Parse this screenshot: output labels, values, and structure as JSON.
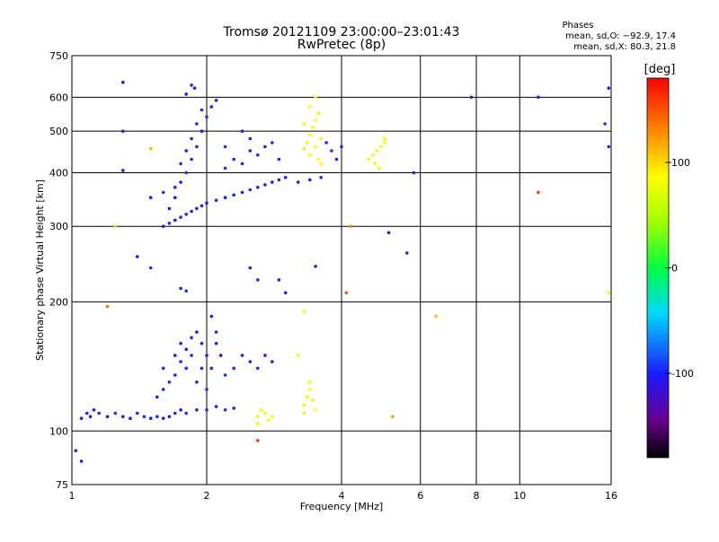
{
  "chart_data": {
    "type": "scatter",
    "title": "Tromsø 20121109 23:00:00–23:01:43",
    "subtitle": "RwPretec (8p)",
    "xlabel": "Frequency [MHz]",
    "ylabel": "Stationary phase Virtual Height [km]",
    "x_scale": "log",
    "y_scale": "log",
    "xlim": [
      1,
      16
    ],
    "ylim": [
      75,
      750
    ],
    "x_ticks": [
      1,
      2,
      4,
      6,
      8,
      10,
      16
    ],
    "y_ticks": [
      75,
      100,
      200,
      300,
      400,
      500,
      600,
      750
    ],
    "grid": true,
    "stats_title": "Phases",
    "stats_line1": "mean, sd,O: −92.9, 17.4",
    "stats_line2": "mean, sd,X:  80.3, 21.8",
    "colorbar": {
      "label": "[deg]",
      "range": [
        -180,
        180
      ],
      "ticks": [
        -100,
        0,
        100
      ],
      "colormap": "rainbow"
    },
    "series": [
      {
        "values": [
          [
            1.05,
            107,
            -100
          ],
          [
            1.08,
            110,
            -95
          ],
          [
            1.1,
            108,
            -105
          ],
          [
            1.12,
            112,
            -100
          ],
          [
            1.15,
            110,
            -98
          ],
          [
            1.2,
            108,
            -100
          ],
          [
            1.25,
            110,
            -95
          ],
          [
            1.3,
            108,
            -100
          ],
          [
            1.35,
            107,
            -100
          ],
          [
            1.4,
            110,
            -98
          ],
          [
            1.45,
            108,
            -95
          ],
          [
            1.5,
            107,
            -100
          ],
          [
            1.55,
            108,
            -100
          ],
          [
            1.6,
            107,
            -105
          ],
          [
            1.65,
            108,
            -100
          ],
          [
            1.7,
            110,
            -98
          ],
          [
            1.75,
            112,
            -100
          ],
          [
            1.8,
            110,
            -95
          ],
          [
            1.9,
            112,
            -100
          ],
          [
            2.0,
            112,
            -98
          ],
          [
            2.1,
            114,
            -100
          ],
          [
            2.2,
            112,
            -95
          ],
          [
            2.3,
            113,
            -100
          ],
          [
            1.6,
            125,
            -98
          ],
          [
            1.7,
            135,
            -100
          ],
          [
            1.75,
            145,
            -95
          ],
          [
            1.8,
            155,
            -100
          ],
          [
            1.85,
            165,
            -98
          ],
          [
            1.9,
            170,
            -100
          ],
          [
            1.65,
            130,
            -95
          ],
          [
            1.7,
            150,
            -100
          ],
          [
            1.8,
            140,
            -98
          ],
          [
            1.9,
            130,
            -100
          ],
          [
            2.0,
            125,
            -95
          ],
          [
            2.05,
            140,
            -100
          ],
          [
            2.1,
            160,
            -98
          ],
          [
            2.15,
            150,
            -100
          ],
          [
            2.2,
            135,
            -95
          ],
          [
            2.3,
            140,
            -100
          ],
          [
            2.4,
            150,
            -98
          ],
          [
            2.5,
            145,
            -100
          ],
          [
            2.6,
            140,
            -95
          ],
          [
            2.7,
            150,
            -100
          ],
          [
            2.8,
            145,
            -98
          ],
          [
            2.05,
            185,
            -100
          ],
          [
            1.55,
            120,
            -100
          ],
          [
            1.6,
            140,
            -98
          ],
          [
            1.75,
            160,
            -100
          ],
          [
            1.85,
            150,
            -95
          ],
          [
            1.95,
            140,
            -100
          ],
          [
            1.95,
            160,
            -98
          ],
          [
            2.0,
            150,
            -100
          ],
          [
            2.1,
            170,
            -95
          ],
          [
            1.6,
            300,
            -100
          ],
          [
            1.65,
            305,
            -95
          ],
          [
            1.7,
            310,
            -100
          ],
          [
            1.75,
            315,
            -98
          ],
          [
            1.8,
            320,
            -100
          ],
          [
            1.85,
            325,
            -95
          ],
          [
            1.9,
            330,
            -100
          ],
          [
            1.95,
            335,
            -98
          ],
          [
            2.0,
            340,
            -100
          ],
          [
            2.1,
            345,
            -95
          ],
          [
            2.2,
            350,
            -100
          ],
          [
            2.3,
            355,
            -98
          ],
          [
            2.4,
            360,
            -100
          ],
          [
            2.5,
            365,
            -95
          ],
          [
            2.6,
            370,
            -100
          ],
          [
            2.7,
            375,
            -98
          ],
          [
            2.8,
            380,
            -100
          ],
          [
            2.9,
            385,
            -95
          ],
          [
            3.0,
            390,
            -100
          ],
          [
            3.2,
            380,
            -98
          ],
          [
            3.4,
            385,
            -100
          ],
          [
            3.6,
            390,
            -95
          ],
          [
            1.65,
            330,
            -100
          ],
          [
            1.7,
            350,
            -98
          ],
          [
            1.75,
            380,
            -100
          ],
          [
            1.8,
            400,
            -95
          ],
          [
            1.85,
            430,
            -100
          ],
          [
            1.9,
            460,
            -98
          ],
          [
            1.95,
            500,
            -100
          ],
          [
            2.0,
            540,
            -95
          ],
          [
            2.05,
            570,
            -100
          ],
          [
            2.1,
            590,
            -98
          ],
          [
            1.7,
            370,
            -100
          ],
          [
            1.75,
            420,
            -95
          ],
          [
            1.8,
            450,
            -100
          ],
          [
            1.85,
            480,
            -98
          ],
          [
            1.9,
            520,
            -100
          ],
          [
            1.95,
            560,
            -95
          ],
          [
            1.8,
            610,
            -100
          ],
          [
            1.85,
            640,
            -98
          ],
          [
            1.88,
            630,
            -100
          ],
          [
            2.2,
            410,
            -95
          ],
          [
            2.3,
            430,
            -100
          ],
          [
            2.4,
            420,
            -98
          ],
          [
            2.5,
            450,
            -100
          ],
          [
            2.6,
            440,
            -95
          ],
          [
            2.7,
            460,
            -100
          ],
          [
            2.8,
            470,
            -98
          ],
          [
            2.9,
            430,
            -100
          ],
          [
            2.2,
            460,
            -95
          ],
          [
            2.4,
            500,
            -100
          ],
          [
            2.5,
            480,
            -98
          ],
          [
            3.7,
            470,
            -100
          ],
          [
            3.8,
            450,
            -95
          ],
          [
            3.9,
            430,
            -100
          ],
          [
            4.0,
            460,
            -98
          ],
          [
            1.75,
            215,
            -100
          ],
          [
            1.8,
            212,
            -95
          ],
          [
            3.0,
            210,
            -100
          ],
          [
            2.6,
            225,
            -98
          ],
          [
            1.5,
            350,
            -100
          ],
          [
            1.6,
            360,
            -95
          ],
          [
            3.3,
            455,
            70
          ],
          [
            3.35,
            470,
            75
          ],
          [
            3.4,
            490,
            80
          ],
          [
            3.45,
            510,
            78
          ],
          [
            3.5,
            530,
            82
          ],
          [
            3.55,
            550,
            76
          ],
          [
            3.4,
            440,
            85
          ],
          [
            3.5,
            460,
            80
          ],
          [
            3.6,
            480,
            78
          ],
          [
            3.3,
            520,
            75
          ],
          [
            3.4,
            570,
            82
          ],
          [
            3.5,
            600,
            80
          ],
          [
            3.55,
            430,
            85
          ],
          [
            3.6,
            420,
            78
          ],
          [
            4.6,
            430,
            82
          ],
          [
            4.7,
            440,
            80
          ],
          [
            4.8,
            450,
            78
          ],
          [
            4.9,
            460,
            85
          ],
          [
            5.0,
            470,
            80
          ],
          [
            4.75,
            420,
            75
          ],
          [
            4.85,
            410,
            82
          ],
          [
            5.0,
            480,
            78
          ],
          [
            3.3,
            115,
            75
          ],
          [
            3.35,
            120,
            80
          ],
          [
            3.4,
            125,
            82
          ],
          [
            3.45,
            118,
            78
          ],
          [
            3.5,
            112,
            85
          ],
          [
            3.4,
            130,
            80
          ],
          [
            3.3,
            110,
            75
          ],
          [
            2.6,
            108,
            82
          ],
          [
            2.65,
            112,
            80
          ],
          [
            2.7,
            110,
            78
          ],
          [
            2.75,
            106,
            85
          ],
          [
            2.8,
            108,
            80
          ],
          [
            2.6,
            104,
            75
          ],
          [
            3.3,
            190,
            82
          ],
          [
            3.2,
            150,
            80
          ],
          [
            1.3,
            650,
            -110
          ],
          [
            1.3,
            500,
            -100
          ],
          [
            1.3,
            405,
            -100
          ],
          [
            1.02,
            90,
            -95
          ],
          [
            1.05,
            85,
            -100
          ],
          [
            1.4,
            255,
            -100
          ],
          [
            1.5,
            240,
            -95
          ],
          [
            2.5,
            240,
            -100
          ],
          [
            2.9,
            225,
            -100
          ],
          [
            3.5,
            242,
            -98
          ],
          [
            5.1,
            290,
            -100
          ],
          [
            5.6,
            260,
            -95
          ],
          [
            5.8,
            400,
            -100
          ],
          [
            7.8,
            600,
            -100
          ],
          [
            11.0,
            600,
            -100
          ],
          [
            15.5,
            520,
            -95
          ],
          [
            15.8,
            630,
            -100
          ],
          [
            15.8,
            460,
            -98
          ],
          [
            4.1,
            210,
            150
          ],
          [
            4.2,
            300,
            130
          ],
          [
            6.5,
            185,
            110
          ],
          [
            5.2,
            108,
            120
          ],
          [
            2.6,
            95,
            160
          ],
          [
            11.0,
            360,
            160
          ],
          [
            15.8,
            210,
            90
          ],
          [
            1.2,
            195,
            140
          ],
          [
            1.25,
            300,
            50
          ],
          [
            1.5,
            455,
            110
          ]
        ]
      }
    ]
  }
}
